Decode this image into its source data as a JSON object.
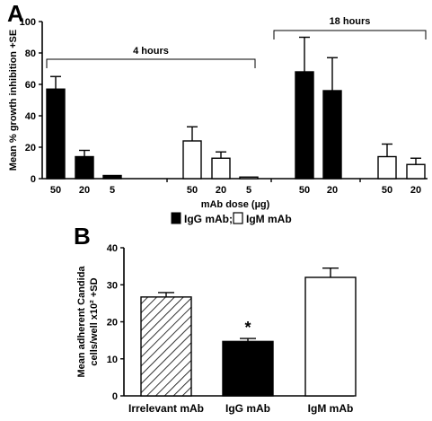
{
  "chart_data": [
    {
      "panel": "A",
      "type": "bar",
      "ylabel": "Mean % growth inhibition +SE",
      "xlabel": "mAb dose (µg)",
      "ylim": [
        0,
        100
      ],
      "yticks": [
        0,
        20,
        40,
        60,
        80,
        100
      ],
      "brackets": [
        {
          "label": "4 hours"
        },
        {
          "label": "18 hours"
        }
      ],
      "legend": {
        "entries": [
          {
            "label": "IgG mAb;",
            "fill": "#000000"
          },
          {
            "label": "IgM mAb",
            "fill": "#ffffff"
          }
        ]
      },
      "bars": [
        {
          "dose": "50",
          "series": "IgG mAb",
          "time": "4 hours",
          "value": 57,
          "se": 8
        },
        {
          "dose": "20",
          "series": "IgG mAb",
          "time": "4 hours",
          "value": 14,
          "se": 4
        },
        {
          "dose": "5",
          "series": "IgG mAb",
          "time": "4 hours",
          "value": 2,
          "se": 0
        },
        {
          "dose": "50",
          "series": "IgM mAb",
          "time": "4 hours",
          "value": 24,
          "se": 9
        },
        {
          "dose": "20",
          "series": "IgM mAb",
          "time": "4 hours",
          "value": 13,
          "se": 4
        },
        {
          "dose": "5",
          "series": "IgM mAb",
          "time": "4 hours",
          "value": 1,
          "se": 0
        },
        {
          "dose": "50",
          "series": "IgG mAb",
          "time": "18 hours",
          "value": 68,
          "se": 22
        },
        {
          "dose": "20",
          "series": "IgG mAb",
          "time": "18 hours",
          "value": 56,
          "se": 21
        },
        {
          "dose": "50",
          "series": "IgM mAb",
          "time": "18 hours",
          "value": 14,
          "se": 8
        },
        {
          "dose": "20",
          "series": "IgM mAb",
          "time": "18 hours",
          "value": 9,
          "se": 4
        }
      ]
    },
    {
      "panel": "B",
      "type": "bar",
      "ylabel_line1": "Mean adherent Candida",
      "ylabel_line2": "cells/well x10² +SD",
      "ylim": [
        0,
        40
      ],
      "yticks": [
        0,
        10,
        20,
        30,
        40
      ],
      "categories": [
        "Irrelevant mAb",
        "IgG mAb",
        "IgM mAb"
      ],
      "values": [
        26.7,
        14.7,
        32
      ],
      "sd": [
        1.2,
        0.8,
        2.5
      ],
      "fills": [
        "hatched",
        "#000000",
        "#ffffff"
      ],
      "annotations": [
        {
          "category": "IgG mAb",
          "text": "*"
        }
      ]
    }
  ]
}
